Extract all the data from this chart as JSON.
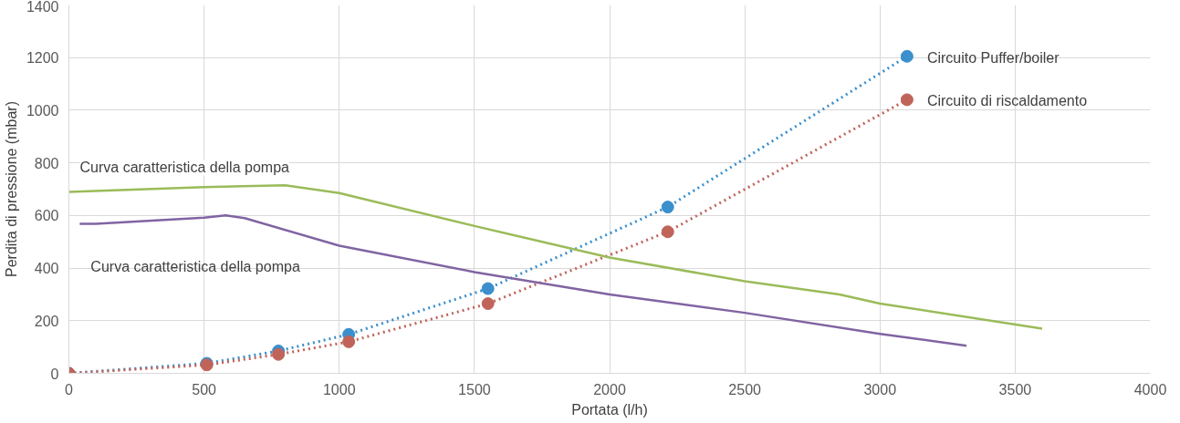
{
  "chart_data": {
    "type": "line",
    "xlabel": "Portata (l/h)",
    "ylabel": "Perdita di pressione (mbar)",
    "xlim": [
      0,
      4000
    ],
    "xticks": [
      0,
      500,
      1000,
      1500,
      2000,
      2500,
      3000,
      3500,
      4000
    ],
    "ylim": [
      0,
      1400
    ],
    "yticks": [
      0,
      200,
      400,
      600,
      800,
      1000,
      1200,
      1400
    ],
    "grid": true,
    "series": [
      {
        "name": "Circuito Puffer/boiler",
        "color": "#3b8fcc",
        "marker": "circle",
        "line_style": "dotted",
        "x": [
          0,
          510,
          775,
          1035,
          1550,
          2215,
          3100
        ],
        "values": [
          0,
          38,
          85,
          148,
          322,
          632,
          1205
        ]
      },
      {
        "name": "Circuito di riscaldamento",
        "color": "#c0645a",
        "marker": "circle",
        "line_style": "dotted",
        "x": [
          0,
          510,
          775,
          1035,
          1550,
          2215,
          3100
        ],
        "values": [
          0,
          32,
          72,
          120,
          265,
          538,
          1040
        ]
      },
      {
        "name": "Curva caratteristica della pompa",
        "color": "#9bbb59",
        "marker": "none",
        "line_style": "solid",
        "x": [
          0,
          500,
          800,
          1000,
          1500,
          2000,
          2500,
          2850,
          3000,
          3600
        ],
        "values": [
          690,
          708,
          715,
          685,
          560,
          440,
          350,
          300,
          265,
          170
        ]
      },
      {
        "name": "Curva caratteristica della pompa",
        "color": "#8064a2",
        "marker": "none",
        "line_style": "solid",
        "x": [
          40,
          100,
          500,
          580,
          650,
          1000,
          1500,
          2000,
          2500,
          3000,
          3320
        ],
        "values": [
          568,
          568,
          592,
          600,
          590,
          485,
          385,
          300,
          230,
          150,
          105
        ]
      }
    ]
  }
}
